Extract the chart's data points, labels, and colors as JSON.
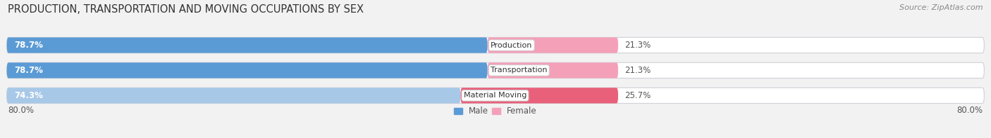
{
  "title": "PRODUCTION, TRANSPORTATION AND MOVING OCCUPATIONS BY SEX",
  "source": "Source: ZipAtlas.com",
  "categories": [
    "Production",
    "Transportation",
    "Material Moving"
  ],
  "male_values": [
    78.7,
    78.7,
    74.3
  ],
  "female_values": [
    21.3,
    21.3,
    25.7
  ],
  "male_colors": [
    "#5b9bd5",
    "#5b9bd5",
    "#a8c8e8"
  ],
  "female_colors": [
    "#f4a0b8",
    "#f4a0b8",
    "#e8607a"
  ],
  "background_color": "#f2f2f2",
  "bar_bg_color": "#e0e0e8",
  "x_left_label": "80.0%",
  "x_right_label": "80.0%",
  "title_fontsize": 10.5,
  "source_fontsize": 8,
  "bar_label_fontsize": 8.5,
  "category_fontsize": 8,
  "axis_label_fontsize": 8.5,
  "legend_fontsize": 8.5,
  "total_width": 160,
  "max_val": 80.0,
  "bar_height": 0.62,
  "n_bars": 3
}
